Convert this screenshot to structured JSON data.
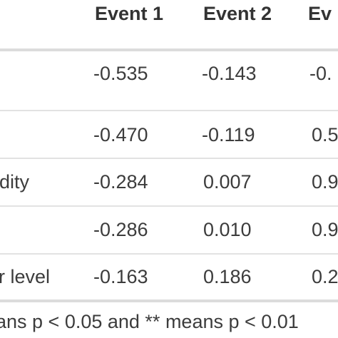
{
  "table": {
    "columns": [
      "Event 1",
      "Event 2",
      "Ev"
    ],
    "rows": [
      {
        "label": "",
        "values": [
          "-0.535",
          "-0.143",
          "-0."
        ]
      },
      {
        "label": "",
        "values": [
          "-0.470",
          "-0.119",
          "0.5"
        ]
      },
      {
        "label": "dity",
        "values": [
          "-0.284",
          "0.007",
          "0.9"
        ]
      },
      {
        "label": "",
        "values": [
          "-0.286",
          "0.010",
          "0.9"
        ]
      },
      {
        "label": "r level",
        "values": [
          "-0.163",
          "0.186",
          "0.2"
        ]
      }
    ]
  },
  "footnote": "ans p < 0.05 and ** means p < 0.01"
}
